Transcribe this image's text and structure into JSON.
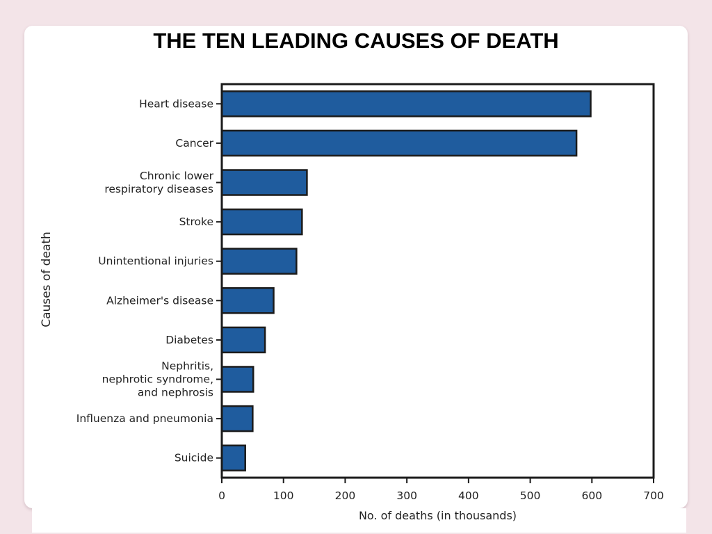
{
  "slide": {
    "title": "THE TEN LEADING CAUSES OF DEATH"
  },
  "chart_data": {
    "type": "bar",
    "orientation": "horizontal",
    "categories": [
      "Heart disease",
      "Cancer",
      "Chronic lower respiratory diseases",
      "Stroke",
      "Unintentional injuries",
      "Alzheimer's disease",
      "Diabetes",
      "Nephritis, nephrotic syndrome, and nephrosis",
      "Influenza and pneumonia",
      "Suicide"
    ],
    "category_label_lines": [
      [
        "Heart disease"
      ],
      [
        "Cancer"
      ],
      [
        "Chronic lower",
        "respiratory diseases"
      ],
      [
        "Stroke"
      ],
      [
        "Unintentional injuries"
      ],
      [
        "Alzheimer's disease"
      ],
      [
        "Diabetes"
      ],
      [
        "Nephritis,",
        "nephrotic syndrome,",
        "and nephrosis"
      ],
      [
        "Influenza and pneumonia"
      ],
      [
        "Suicide"
      ]
    ],
    "values": [
      598,
      575,
      138,
      130,
      121,
      84,
      70,
      51,
      50,
      38
    ],
    "xlabel": "No. of deaths (in thousands)",
    "ylabel": "Causes of death",
    "xlim": [
      0,
      700
    ],
    "xticks": [
      0,
      100,
      200,
      300,
      400,
      500,
      600,
      700
    ],
    "grid": false,
    "legend": "none",
    "colors": {
      "bar": "#1f5c9e",
      "bar_edge": "#1b1b1b",
      "frame": "#1b1b1b"
    }
  }
}
